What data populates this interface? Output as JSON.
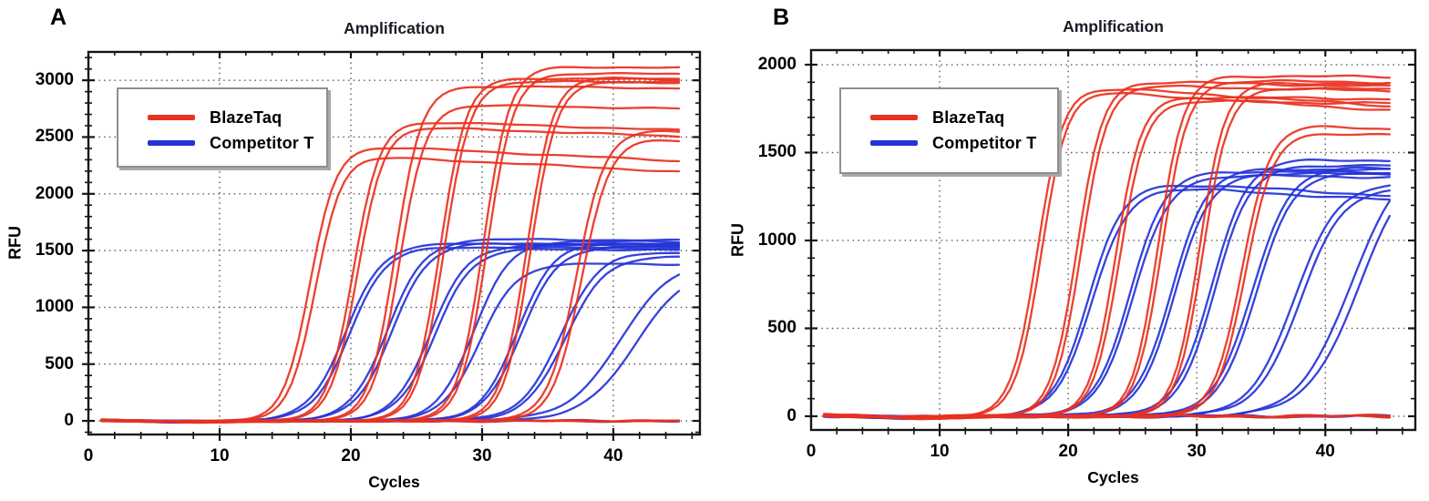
{
  "figure": {
    "background": "#ffffff",
    "description_note": "Two qPCR amplification plots"
  },
  "chart_data": [
    {
      "type": "line",
      "panel_label": "A",
      "title": "Amplification",
      "xlabel": "Cycles",
      "ylabel": "RFU",
      "xticks": [
        0,
        10,
        20,
        30,
        40
      ],
      "yticks": [
        0,
        500,
        1000,
        1500,
        2000,
        2500,
        3000
      ],
      "xlim": [
        0,
        46.6
      ],
      "ylim": [
        -120,
        3250
      ],
      "x_minor_step": 2,
      "y_minor_step": 100,
      "grid": "dotted-major",
      "legend_position": "upper-left",
      "legend": [
        {
          "label": "BlazeTaq",
          "color": "#e93120"
        },
        {
          "label": "Competitor T",
          "color": "#2433d8"
        }
      ],
      "series": [
        {
          "group": "BlazeTaq",
          "ct": 16.9,
          "plateau": 2435,
          "end_rfu": 2290,
          "k": 1.0
        },
        {
          "group": "BlazeTaq",
          "ct": 17.3,
          "plateau": 2345,
          "end_rfu": 2195,
          "k": 1.0
        },
        {
          "group": "BlazeTaq",
          "ct": 20.2,
          "plateau": 2650,
          "end_rfu": 2560,
          "k": 1.0
        },
        {
          "group": "BlazeTaq",
          "ct": 20.5,
          "plateau": 2600,
          "end_rfu": 2505,
          "k": 1.0
        },
        {
          "group": "BlazeTaq",
          "ct": 23.4,
          "plateau": 2955,
          "end_rfu": 2930,
          "k": 1.0
        },
        {
          "group": "BlazeTaq",
          "ct": 23.7,
          "plateau": 2790,
          "end_rfu": 2750,
          "k": 1.0
        },
        {
          "group": "BlazeTaq",
          "ct": 26.8,
          "plateau": 3025,
          "end_rfu": 3005,
          "k": 1.0
        },
        {
          "group": "BlazeTaq",
          "ct": 27.1,
          "plateau": 2995,
          "end_rfu": 2980,
          "k": 1.0
        },
        {
          "group": "BlazeTaq",
          "ct": 30.1,
          "plateau": 3125,
          "end_rfu": 3110,
          "k": 1.0
        },
        {
          "group": "BlazeTaq",
          "ct": 30.4,
          "plateau": 3065,
          "end_rfu": 3055,
          "k": 1.0
        },
        {
          "group": "BlazeTaq",
          "ct": 33.4,
          "plateau": 3030,
          "end_rfu": 3015,
          "k": 1.0
        },
        {
          "group": "BlazeTaq",
          "ct": 33.7,
          "plateau": 2995,
          "end_rfu": 2985,
          "k": 1.0
        },
        {
          "group": "BlazeTaq",
          "ct": 37.2,
          "plateau": 2580,
          "end_rfu": 2545,
          "k": 0.9
        },
        {
          "group": "BlazeTaq",
          "ct": 37.6,
          "plateau": 2515,
          "end_rfu": 2470,
          "k": 0.9
        },
        {
          "group": "BlazeTaq",
          "ct": 1,
          "plateau": 0,
          "end_rfu": 0,
          "k": 1.0
        },
        {
          "group": "BlazeTaq",
          "ct": 1,
          "plateau": 0,
          "end_rfu": 0,
          "k": 1.0
        },
        {
          "group": "Competitor T",
          "ct": 19.6,
          "plateau": 1565,
          "end_rfu": 1550,
          "k": 0.72
        },
        {
          "group": "Competitor T",
          "ct": 19.9,
          "plateau": 1535,
          "end_rfu": 1520,
          "k": 0.72
        },
        {
          "group": "Competitor T",
          "ct": 22.8,
          "plateau": 1605,
          "end_rfu": 1590,
          "k": 0.72
        },
        {
          "group": "Competitor T",
          "ct": 23.1,
          "plateau": 1570,
          "end_rfu": 1555,
          "k": 0.72
        },
        {
          "group": "Competitor T",
          "ct": 26.1,
          "plateau": 1555,
          "end_rfu": 1540,
          "k": 0.72
        },
        {
          "group": "Competitor T",
          "ct": 26.4,
          "plateau": 1520,
          "end_rfu": 1505,
          "k": 0.72
        },
        {
          "group": "Competitor T",
          "ct": 29.4,
          "plateau": 1595,
          "end_rfu": 1575,
          "k": 0.72
        },
        {
          "group": "Competitor T",
          "ct": 29.8,
          "plateau": 1390,
          "end_rfu": 1380,
          "k": 0.72
        },
        {
          "group": "Competitor T",
          "ct": 32.7,
          "plateau": 1580,
          "end_rfu": 1560,
          "k": 0.72
        },
        {
          "group": "Competitor T",
          "ct": 33.0,
          "plateau": 1545,
          "end_rfu": 1530,
          "k": 0.72
        },
        {
          "group": "Competitor T",
          "ct": 36.0,
          "plateau": 1515,
          "end_rfu": 1480,
          "k": 0.65
        },
        {
          "group": "Competitor T",
          "ct": 36.4,
          "plateau": 1475,
          "end_rfu": 1445,
          "k": 0.65
        },
        {
          "group": "Competitor T",
          "ct": 40.5,
          "plateau": 1420,
          "end_rfu": 1285,
          "k": 0.5
        },
        {
          "group": "Competitor T",
          "ct": 41.8,
          "plateau": 1385,
          "end_rfu": 1150,
          "k": 0.5
        },
        {
          "group": "Competitor T",
          "ct": 1,
          "plateau": 0,
          "end_rfu": 0,
          "k": 1.0
        },
        {
          "group": "Competitor T",
          "ct": 1,
          "plateau": 0,
          "end_rfu": 0,
          "k": 1.0
        }
      ]
    },
    {
      "type": "line",
      "panel_label": "B",
      "title": "Amplification",
      "xlabel": "Cycles",
      "ylabel": "RFU",
      "xticks": [
        0,
        10,
        20,
        30,
        40
      ],
      "yticks": [
        0,
        500,
        1000,
        1500,
        2000
      ],
      "xlim": [
        0,
        47
      ],
      "ylim": [
        -78,
        2083
      ],
      "x_minor_step": 2,
      "y_minor_step": 100,
      "grid": "dotted-major",
      "legend_position": "upper-left",
      "legend": [
        {
          "label": "BlazeTaq",
          "color": "#e93120"
        },
        {
          "label": "Competitor T",
          "color": "#2433d8"
        }
      ],
      "series": [
        {
          "group": "BlazeTaq",
          "ct": 17.6,
          "plateau": 1885,
          "end_rfu": 1765,
          "k": 1.0
        },
        {
          "group": "BlazeTaq",
          "ct": 17.9,
          "plateau": 1860,
          "end_rfu": 1740,
          "k": 1.0
        },
        {
          "group": "BlazeTaq",
          "ct": 20.7,
          "plateau": 1910,
          "end_rfu": 1875,
          "k": 1.0
        },
        {
          "group": "BlazeTaq",
          "ct": 21.0,
          "plateau": 1885,
          "end_rfu": 1850,
          "k": 1.0
        },
        {
          "group": "BlazeTaq",
          "ct": 23.7,
          "plateau": 1820,
          "end_rfu": 1805,
          "k": 1.0
        },
        {
          "group": "BlazeTaq",
          "ct": 24.0,
          "plateau": 1795,
          "end_rfu": 1780,
          "k": 1.0
        },
        {
          "group": "BlazeTaq",
          "ct": 27.0,
          "plateau": 1940,
          "end_rfu": 1930,
          "k": 1.0
        },
        {
          "group": "BlazeTaq",
          "ct": 27.3,
          "plateau": 1910,
          "end_rfu": 1900,
          "k": 1.0
        },
        {
          "group": "BlazeTaq",
          "ct": 30.2,
          "plateau": 1900,
          "end_rfu": 1890,
          "k": 1.0
        },
        {
          "group": "BlazeTaq",
          "ct": 30.5,
          "plateau": 1870,
          "end_rfu": 1860,
          "k": 1.0
        },
        {
          "group": "BlazeTaq",
          "ct": 33.5,
          "plateau": 1665,
          "end_rfu": 1635,
          "k": 0.9
        },
        {
          "group": "BlazeTaq",
          "ct": 33.8,
          "plateau": 1625,
          "end_rfu": 1600,
          "k": 0.9
        },
        {
          "group": "BlazeTaq",
          "ct": 1,
          "plateau": 0,
          "end_rfu": 0,
          "k": 1.0
        },
        {
          "group": "BlazeTaq",
          "ct": 1,
          "plateau": 0,
          "end_rfu": 0,
          "k": 1.0
        },
        {
          "group": "Competitor T",
          "ct": 21.6,
          "plateau": 1345,
          "end_rfu": 1255,
          "k": 0.72
        },
        {
          "group": "Competitor T",
          "ct": 21.9,
          "plateau": 1320,
          "end_rfu": 1230,
          "k": 0.72
        },
        {
          "group": "Competitor T",
          "ct": 24.8,
          "plateau": 1400,
          "end_rfu": 1385,
          "k": 0.72
        },
        {
          "group": "Competitor T",
          "ct": 25.1,
          "plateau": 1375,
          "end_rfu": 1360,
          "k": 0.72
        },
        {
          "group": "Competitor T",
          "ct": 28.0,
          "plateau": 1415,
          "end_rfu": 1400,
          "k": 0.72
        },
        {
          "group": "Competitor T",
          "ct": 28.3,
          "plateau": 1390,
          "end_rfu": 1375,
          "k": 0.72
        },
        {
          "group": "Competitor T",
          "ct": 31.1,
          "plateau": 1465,
          "end_rfu": 1455,
          "k": 0.72
        },
        {
          "group": "Competitor T",
          "ct": 31.4,
          "plateau": 1435,
          "end_rfu": 1425,
          "k": 0.72
        },
        {
          "group": "Competitor T",
          "ct": 34.3,
          "plateau": 1425,
          "end_rfu": 1410,
          "k": 0.68
        },
        {
          "group": "Competitor T",
          "ct": 34.6,
          "plateau": 1395,
          "end_rfu": 1385,
          "k": 0.68
        },
        {
          "group": "Competitor T",
          "ct": 37.6,
          "plateau": 1340,
          "end_rfu": 1310,
          "k": 0.6
        },
        {
          "group": "Competitor T",
          "ct": 38.0,
          "plateau": 1305,
          "end_rfu": 1280,
          "k": 0.6
        },
        {
          "group": "Competitor T",
          "ct": 42.0,
          "plateau": 1500,
          "end_rfu": 1230,
          "k": 0.5
        },
        {
          "group": "Competitor T",
          "ct": 42.6,
          "plateau": 1480,
          "end_rfu": 1160,
          "k": 0.5
        },
        {
          "group": "Competitor T",
          "ct": 1,
          "plateau": 0,
          "end_rfu": 0,
          "k": 1.0
        },
        {
          "group": "Competitor T",
          "ct": 1,
          "plateau": 0,
          "end_rfu": 0,
          "k": 1.0
        }
      ]
    }
  ]
}
